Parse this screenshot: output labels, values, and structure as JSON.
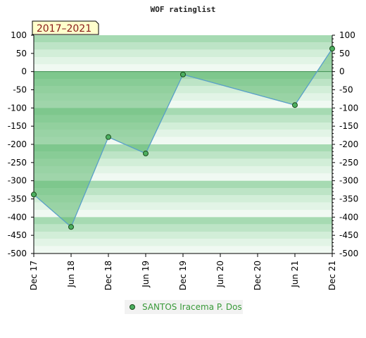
{
  "chart_data": {
    "type": "area",
    "title": "WOF ratinglist",
    "badge": "2017–2021",
    "xlabel": "",
    "ylabel": "",
    "ylim": [
      -500,
      100
    ],
    "yticks": [
      100,
      50,
      0,
      -50,
      -100,
      -150,
      -200,
      -250,
      -300,
      -350,
      -400,
      -450,
      -500
    ],
    "xticks": [
      "Dec 17",
      "Jun 18",
      "Dec 18",
      "Jun 19",
      "Dec 19",
      "Jun 20",
      "Dec 20",
      "Jun 21",
      "Dec 21"
    ],
    "grid": true,
    "legend_position": "bottom-center",
    "series": [
      {
        "name": "SANTOS Iracema P. Dos",
        "points": [
          {
            "x": "Dec 17",
            "y": -338
          },
          {
            "x": "Jun 18",
            "y": -427
          },
          {
            "x": "Dec 18",
            "y": -180
          },
          {
            "x": "Jun 19",
            "y": -225
          },
          {
            "x": "Dec 19",
            "y": -8
          },
          {
            "x": "Jun 21",
            "y": -92
          },
          {
            "x": "Dec 21",
            "y": 63
          }
        ]
      }
    ],
    "colors": {
      "line": "#5aa0d0",
      "fill": "#5cb870",
      "marker": "#4caf60",
      "band_dark": "#a8dcb4",
      "band_light": "#eef8f0"
    }
  }
}
